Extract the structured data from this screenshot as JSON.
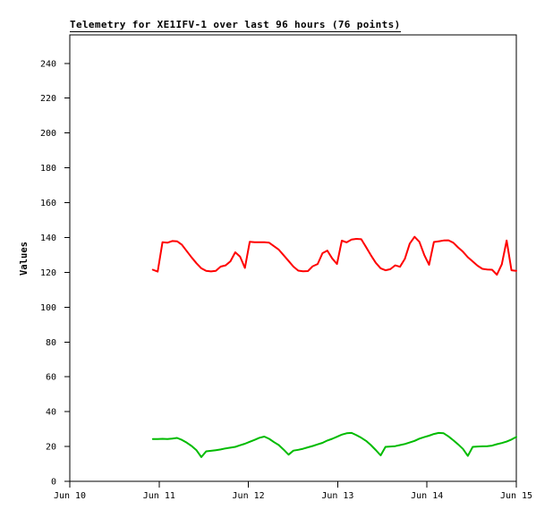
{
  "title": "Telemetry for XE1IFV-1 over last 96 hours (76 points)",
  "colors": {
    "background": "#ffffff",
    "axis": "#000000",
    "text": "#000000",
    "red_series": "#ff0000",
    "green_series": "#00bb00"
  },
  "chart_data": {
    "type": "line",
    "title": "Telemetry for XE1IFV-1 over last 96 hours (76 points)",
    "xlabel": "",
    "ylabel": "Values",
    "grid": false,
    "legend": "none",
    "x_axis": {
      "tick_labels": [
        "Jun 10",
        "Jun 11",
        "Jun 12",
        "Jun 13",
        "Jun 14",
        "Jun 15"
      ],
      "range_days": [
        0,
        5
      ]
    },
    "y_axis": {
      "ticks": [
        0,
        20,
        40,
        60,
        80,
        100,
        120,
        140,
        160,
        180,
        200,
        220,
        240
      ],
      "range": [
        0,
        256
      ]
    },
    "points_per_series": 76,
    "x_start_day": 0.93,
    "x_step_day": 0.054267,
    "series": [
      {
        "name": "red",
        "color": "#ff0000",
        "values": [
          121.5,
          120.4,
          137.3,
          137.0,
          138.0,
          137.8,
          135.8,
          132.2,
          128.6,
          125.2,
          122.3,
          120.8,
          120.5,
          120.8,
          123.3,
          124.0,
          126.3,
          131.5,
          129.0,
          122.5,
          137.5,
          137.3,
          137.3,
          137.3,
          137.0,
          135.0,
          133.0,
          129.8,
          126.5,
          123.3,
          121.0,
          120.6,
          120.7,
          123.5,
          124.8,
          131.0,
          132.5,
          128.0,
          124.8,
          138.2,
          137.2,
          138.8,
          139.2,
          139.0,
          134.5,
          129.8,
          125.5,
          122.3,
          121.2,
          121.8,
          124.0,
          123.2,
          127.7,
          136.5,
          140.4,
          137.5,
          130.0,
          124.3,
          137.4,
          137.8,
          138.3,
          138.4,
          137.0,
          134.3,
          131.8,
          128.7,
          126.2,
          123.8,
          122.0,
          121.6,
          121.5,
          118.6,
          124.6,
          138.3,
          121.2,
          120.8
        ]
      },
      {
        "name": "green",
        "color": "#00bb00",
        "values": [
          24.3,
          24.3,
          24.4,
          24.3,
          24.5,
          24.9,
          23.8,
          22.2,
          20.3,
          17.8,
          13.9,
          17.2,
          17.5,
          17.9,
          18.3,
          18.9,
          19.3,
          19.8,
          20.7,
          21.6,
          22.7,
          23.8,
          25.0,
          25.7,
          24.4,
          22.5,
          20.8,
          18.2,
          15.3,
          17.6,
          18.1,
          18.7,
          19.5,
          20.3,
          21.2,
          22.1,
          23.4,
          24.4,
          25.6,
          26.8,
          27.6,
          27.8,
          26.5,
          25.0,
          23.2,
          20.8,
          18.0,
          14.9,
          19.8,
          20.0,
          20.2,
          20.8,
          21.4,
          22.3,
          23.2,
          24.5,
          25.4,
          26.2,
          27.2,
          27.8,
          27.6,
          25.8,
          23.6,
          21.2,
          18.6,
          14.6,
          19.8,
          20.0,
          20.1,
          20.2,
          20.5,
          21.3,
          22.0,
          22.8,
          24.0,
          25.5
        ]
      }
    ]
  }
}
